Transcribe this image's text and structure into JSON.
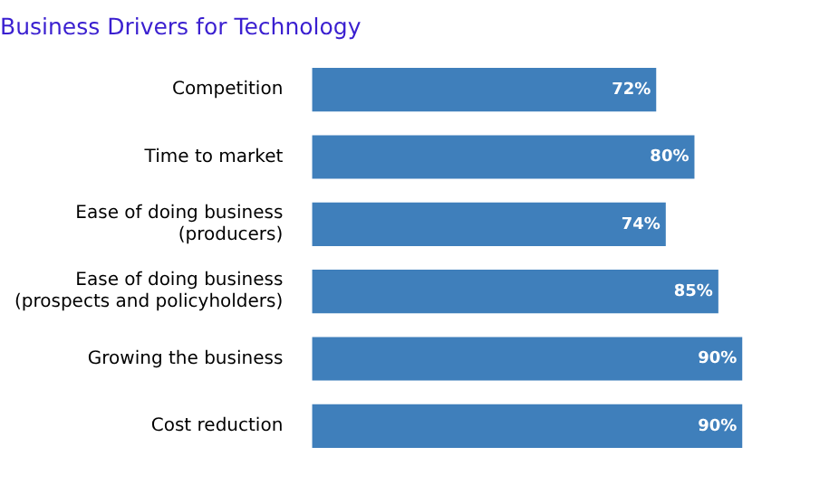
{
  "chart_data": {
    "type": "bar",
    "orientation": "horizontal",
    "title": "Business Drivers for Technology",
    "categories": [
      "Competition",
      "Time to market",
      "Ease of doing business\n(producers)",
      "Ease of doing business\n(prospects and policyholders)",
      "Growing the business",
      "Cost reduction"
    ],
    "values": [
      72,
      80,
      74,
      85,
      90,
      90
    ],
    "value_labels": [
      "72%",
      "80%",
      "74%",
      "85%",
      "90%",
      "90%"
    ],
    "color": "#3f7fbb",
    "tick_labels": "y"
  }
}
